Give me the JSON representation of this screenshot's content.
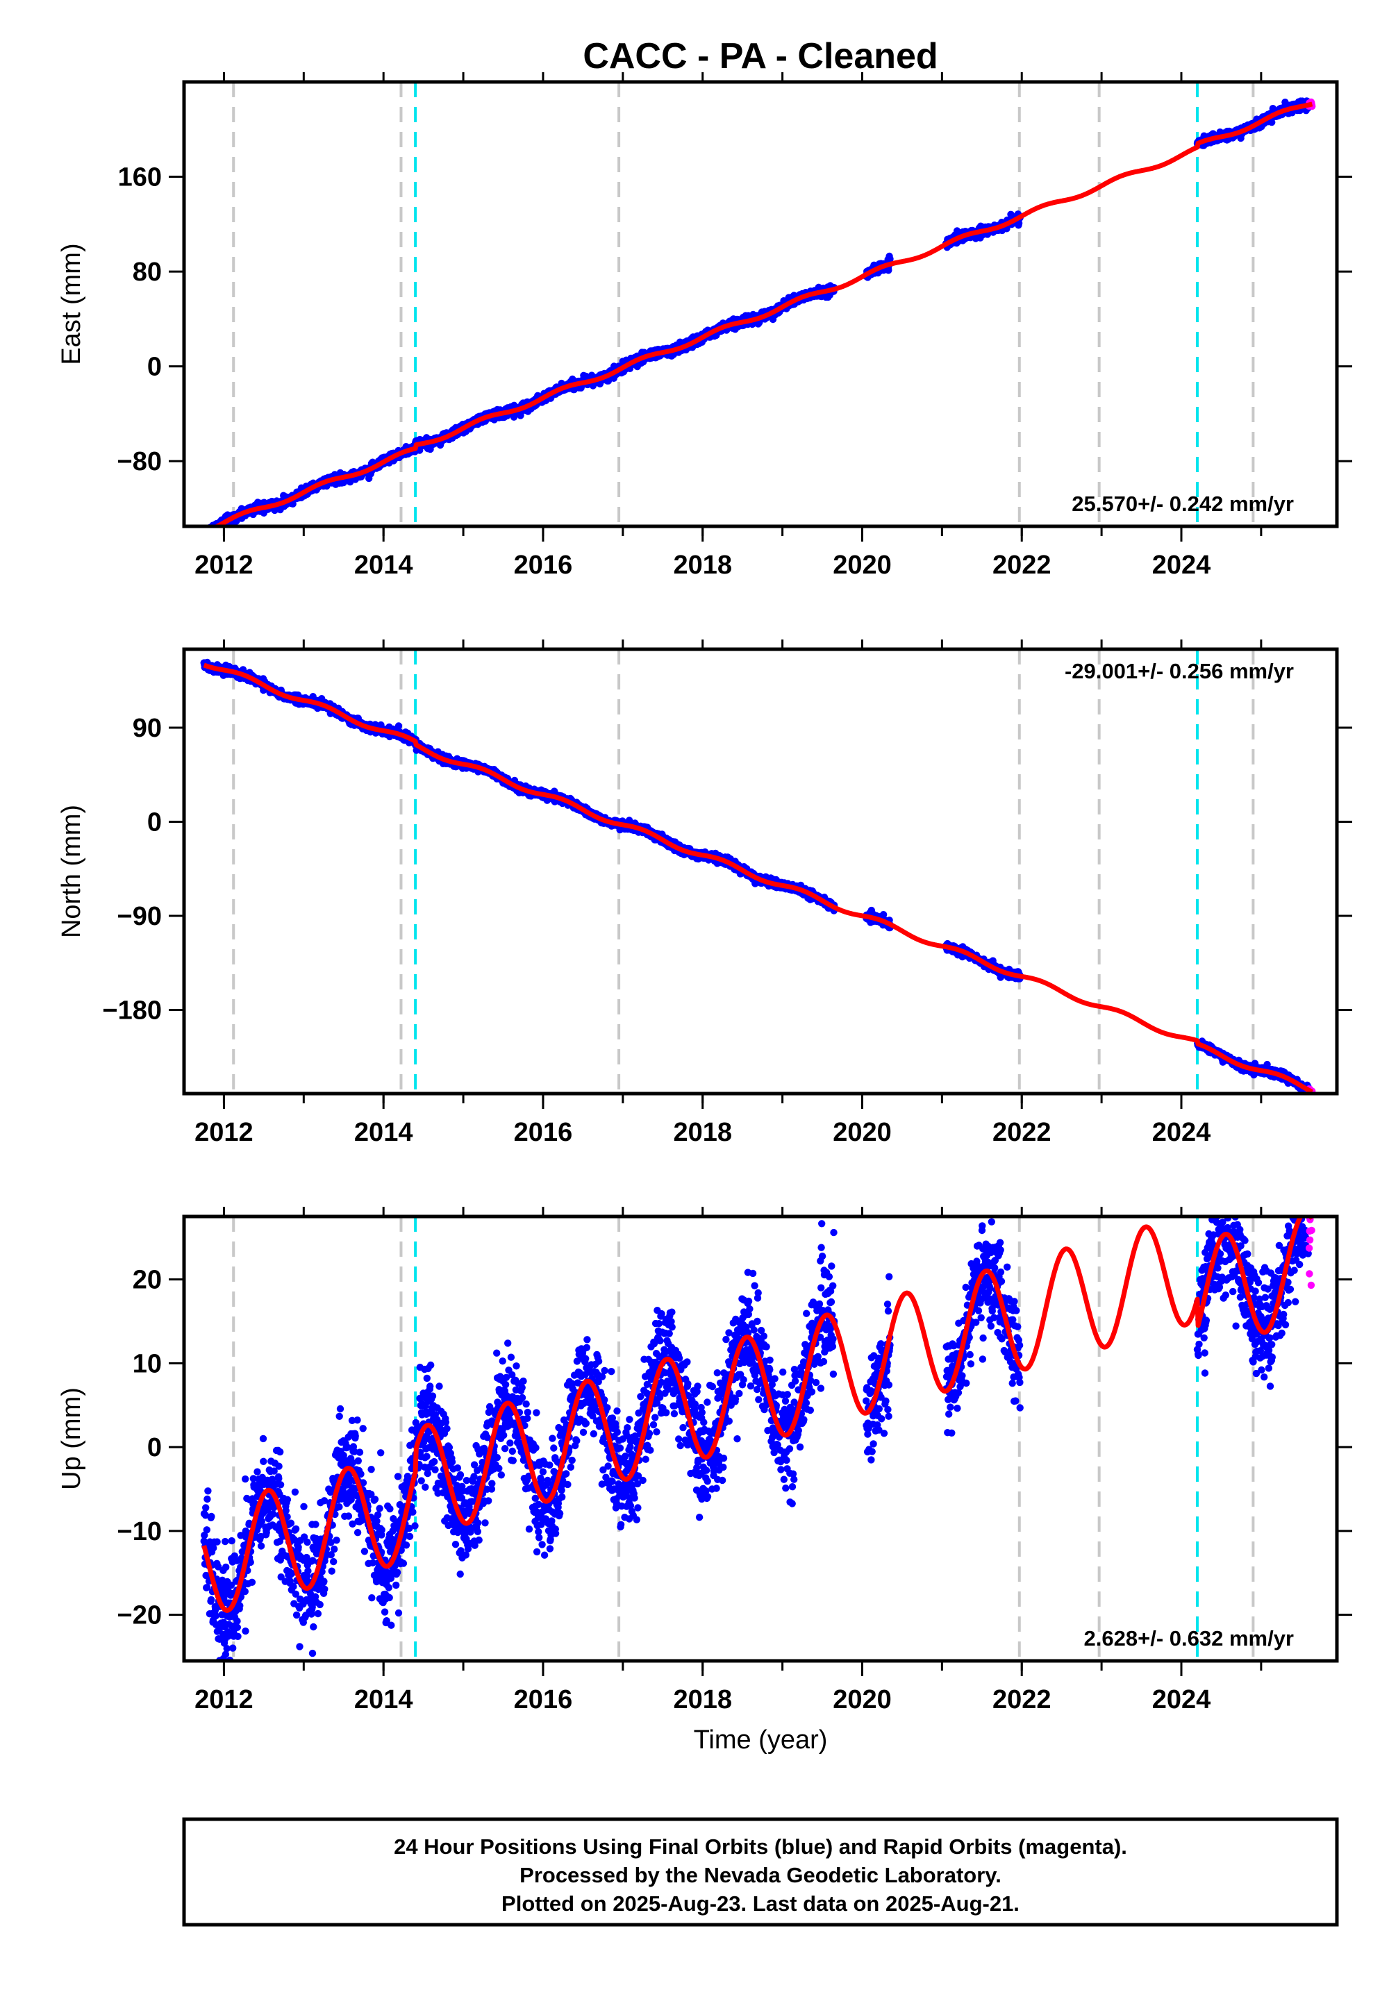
{
  "title": "CACC  - PA - Cleaned",
  "colors": {
    "final_orbits": "#0000ff",
    "rapid_orbits": "#ff00ff",
    "model": "#ff0000",
    "gray_events": "#c8c8c8",
    "cyan_events": "#00e5ee"
  },
  "chart_data": [
    {
      "type": "scatter",
      "name": "east",
      "ylabel": "East (mm)",
      "xlim": [
        2011.5,
        2025.95
      ],
      "ylim": [
        -135,
        240
      ],
      "yticks": [
        -80,
        0,
        80,
        160
      ],
      "ytick_labels": [
        "−80",
        "0",
        "80",
        "160"
      ],
      "xticks": [
        2012,
        2014,
        2016,
        2018,
        2020,
        2022,
        2024
      ],
      "xtick_labels": [
        "2012",
        "2014",
        "2016",
        "2018",
        "2020",
        "2022",
        "2024"
      ],
      "rate_label": "25.570+/- 0.242 mm/yr",
      "rate_position": "bottom-right",
      "model": {
        "intercept": -1.5,
        "rate": 25.57,
        "ref_year": 2017.1,
        "seasonal_amp": 2.0,
        "steps": [
          {
            "year": 2014.4,
            "size": 3
          },
          {
            "year": 2024.2,
            "size": 3
          }
        ]
      },
      "scatter_noise": 1.8,
      "final_data_ranges": [
        [
          2011.75,
          2019.65
        ],
        [
          2020.05,
          2020.35
        ],
        [
          2021.05,
          2021.98
        ],
        [
          2024.2,
          2025.6
        ]
      ],
      "rapid_data_ranges": [
        [
          2025.6,
          2025.64
        ]
      ]
    },
    {
      "type": "scatter",
      "name": "north",
      "ylabel": "North (mm)",
      "xlim": [
        2011.5,
        2025.95
      ],
      "ylim": [
        -260,
        165
      ],
      "yticks": [
        -180,
        -90,
        0,
        90
      ],
      "ytick_labels": [
        "−180",
        "−90",
        "0",
        "90"
      ],
      "xticks": [
        2012,
        2014,
        2016,
        2018,
        2020,
        2022,
        2024
      ],
      "xtick_labels": [
        "2012",
        "2014",
        "2016",
        "2018",
        "2020",
        "2022",
        "2024"
      ],
      "rate_label": "-29.001+/- 0.256 mm/yr",
      "rate_position": "top-right",
      "model": {
        "intercept": 1.5,
        "rate": -29.001,
        "ref_year": 2016.95,
        "seasonal_amp": 2.5,
        "steps": [
          {
            "year": 2014.4,
            "size": -3
          },
          {
            "year": 2024.2,
            "size": -3
          }
        ]
      },
      "scatter_noise": 1.8,
      "final_data_ranges": [
        [
          2011.75,
          2019.65
        ],
        [
          2020.05,
          2020.35
        ],
        [
          2021.05,
          2021.98
        ],
        [
          2024.2,
          2025.6
        ]
      ],
      "rapid_data_ranges": [
        [
          2025.6,
          2025.64
        ]
      ]
    },
    {
      "type": "scatter",
      "name": "up",
      "ylabel": "Up (mm)",
      "xlabel": "Time (year)",
      "xlim": [
        2011.5,
        2025.95
      ],
      "ylim": [
        -25.5,
        27.5
      ],
      "yticks": [
        -20,
        -10,
        0,
        10,
        20
      ],
      "ytick_labels": [
        "−20",
        "−10",
        "0",
        "10",
        "20"
      ],
      "xticks": [
        2012,
        2014,
        2016,
        2018,
        2020,
        2022,
        2024
      ],
      "xtick_labels": [
        "2012",
        "2014",
        "2016",
        "2018",
        "2020",
        "2022",
        "2024"
      ],
      "rate_label": "2.628+/- 0.632 mm/yr",
      "rate_position": "bottom-right",
      "model": {
        "intercept": 0.3,
        "rate": 2.628,
        "ref_year": 2017.1,
        "seasonal_amp": 6.5,
        "seasonal_phase": 0.3,
        "steps": [
          {
            "year": 2014.4,
            "size": 2.5
          },
          {
            "year": 2024.2,
            "size": -3.5
          }
        ]
      },
      "scatter_noise": 3.0,
      "final_data_ranges": [
        [
          2011.75,
          2019.65
        ],
        [
          2020.05,
          2020.35
        ],
        [
          2021.05,
          2021.98
        ],
        [
          2024.2,
          2025.6
        ]
      ],
      "rapid_data_ranges": [
        [
          2025.6,
          2025.64
        ]
      ]
    }
  ],
  "event_lines": {
    "gray_years": [
      2012.12,
      2014.22,
      2016.95,
      2021.97,
      2022.97,
      2024.9
    ],
    "cyan_years": [
      2014.4,
      2024.2
    ]
  },
  "footer": {
    "line1": "24 Hour Positions Using Final Orbits (blue) and Rapid Orbits (magenta).",
    "line2": "Processed by the Nevada Geodetic Laboratory.",
    "line3": "Plotted on 2025-Aug-23. Last data on 2025-Aug-21."
  }
}
